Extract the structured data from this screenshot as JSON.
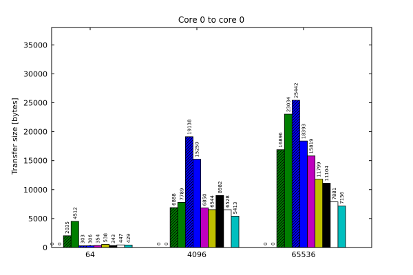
{
  "chart_data": {
    "type": "bar",
    "title": "Core 0 to core 0",
    "xlabel": "",
    "ylabel": "Transfer size [bytes]",
    "ylim": [
      0,
      38000
    ],
    "yticks": [
      0,
      5000,
      10000,
      15000,
      20000,
      25000,
      30000,
      35000
    ],
    "grid": false,
    "categories": [
      "64",
      "4096",
      "65536"
    ],
    "series": [
      {
        "values": [
          0,
          0,
          0
        ],
        "color": "#ffffff",
        "hatch": false
      },
      {
        "values": [
          0,
          0,
          0
        ],
        "color": "#ffffff",
        "hatch": false
      },
      {
        "values": [
          2035,
          6888,
          16896
        ],
        "color": "#007f00",
        "hatch": true
      },
      {
        "values": [
          4512,
          7789,
          23034
        ],
        "color": "#007f00",
        "hatch": false
      },
      {
        "values": [
          303,
          19138,
          25442
        ],
        "color": "#0000ff",
        "hatch": true
      },
      {
        "values": [
          306,
          15250,
          18393
        ],
        "color": "#0000ff",
        "hatch": false
      },
      {
        "values": [
          354,
          6850,
          15819
        ],
        "color": "#bf00bf",
        "hatch": false
      },
      {
        "values": [
          538,
          6544,
          11799
        ],
        "color": "#bfbf00",
        "hatch": false
      },
      {
        "values": [
          343,
          8982,
          11104
        ],
        "color": "#000000",
        "hatch": false
      },
      {
        "values": [
          447,
          6528,
          7881
        ],
        "color": "#ffffff",
        "hatch": false
      },
      {
        "values": [
          429,
          5413,
          7156
        ],
        "color": "#00bfbf",
        "hatch": false
      }
    ]
  }
}
